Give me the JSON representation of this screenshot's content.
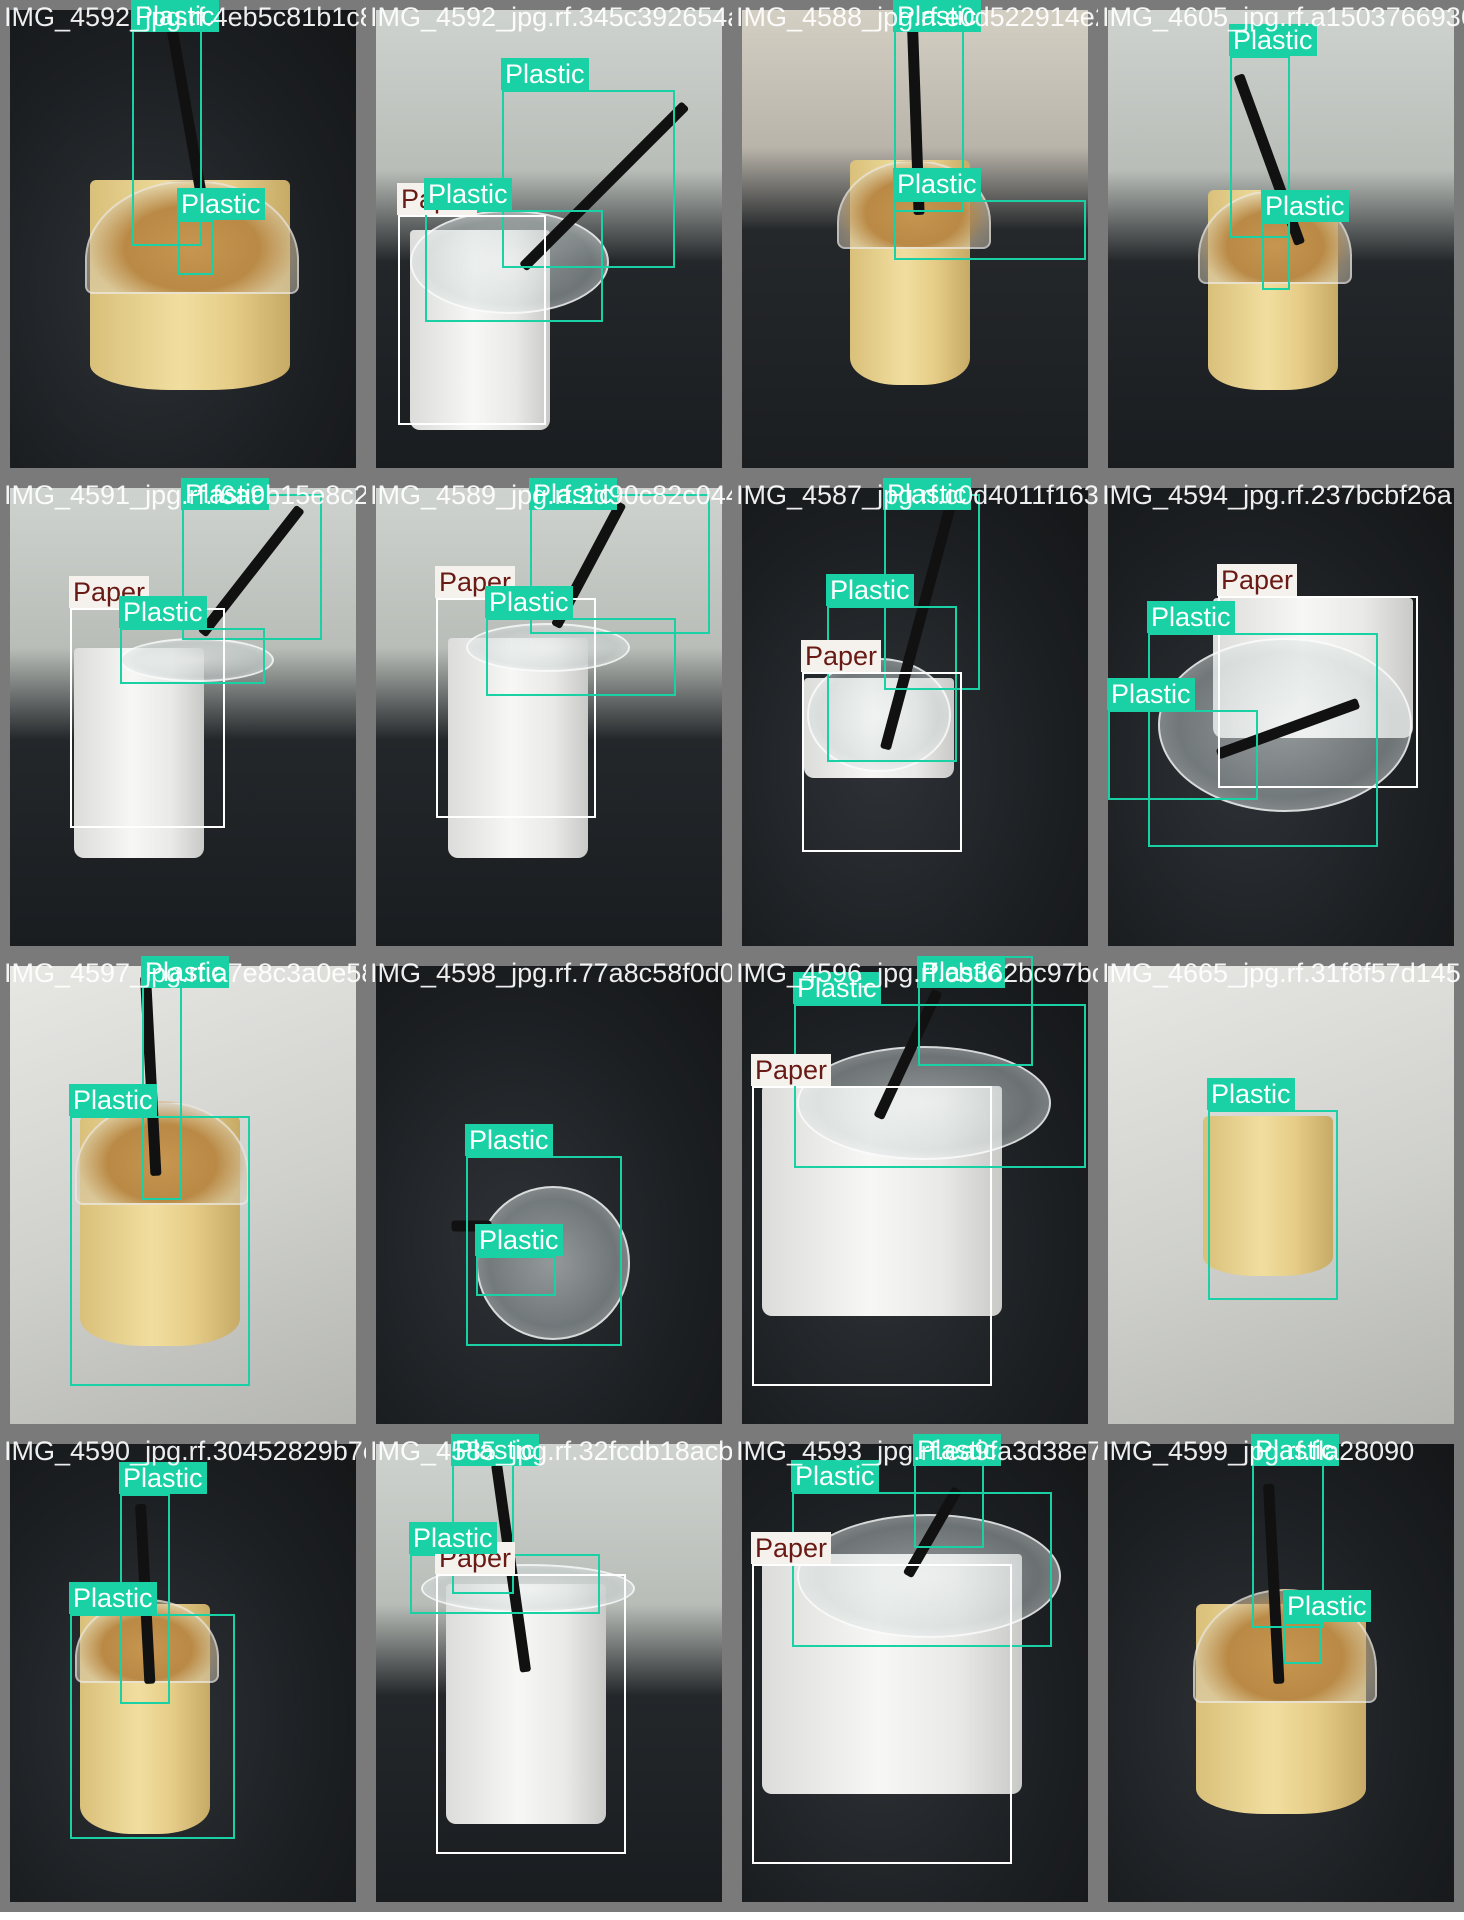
{
  "colors": {
    "plastic": "#1ad1a5",
    "paper": "#ffffff",
    "paper_text": "#6a1a14"
  },
  "tiles": [
    {
      "filename": "IMG_4592_jpg.rf.4eb5c81b1c89590d4fb245c36253416e",
      "labels": [
        "Plastic",
        "Plastic"
      ]
    },
    {
      "filename": "IMG_4592_jpg.rf.345c392654ade4538c2d84ad5229f3ed",
      "labels": [
        "Plastic",
        "Paper",
        "Plastic"
      ]
    },
    {
      "filename": "IMG_4588_jpg.rf.e0d522914e2a05a1503f0693ec",
      "labels": [
        "Plastic",
        "Plastic"
      ]
    },
    {
      "filename": "IMG_4605_jpg.rf.a150376693658",
      "labels": [
        "Plastic",
        "Plastic"
      ]
    },
    {
      "filename": "IMG_4591_jpg.rf.f6a9b15e8c214589fd721d90c82c",
      "labels": [
        "Plastic",
        "Paper",
        "Plastic"
      ]
    },
    {
      "filename": "IMG_4589_jpg.rf.2d90c82c0447456b2a84011f",
      "labels": [
        "Plastic",
        "Paper",
        "Plastic"
      ]
    },
    {
      "filename": "IMG_4587_jpg.rf.c0d4011f163",
      "labels": [
        "Plastic",
        "Plastic",
        "Paper"
      ]
    },
    {
      "filename": "IMG_4594_jpg.rf.237bcbf26a",
      "labels": [
        "Paper",
        "Plastic",
        "Plastic"
      ]
    },
    {
      "filename": "IMG_4597_jpg.rf.a7e8c3a0e58f0e9774ab",
      "labels": [
        "Plastic",
        "Plastic"
      ]
    },
    {
      "filename": "IMG_4598_jpg.rf.77a8c58f0d0c3cd2cb362",
      "labels": [
        "Plastic",
        "Plastic"
      ]
    },
    {
      "filename": "IMG_4596_jpg.rf.cb362bc97bcd94665",
      "labels": [
        "Plastic",
        "Paper",
        "Plastic"
      ]
    },
    {
      "filename": "IMG_4665_jpg.rf.31f8f57d145",
      "labels": [
        "Plastic"
      ]
    },
    {
      "filename": "IMG_4590_jpg.rf.30452829b7e9",
      "labels": [
        "Plastic",
        "Plastic"
      ]
    },
    {
      "filename": "IMG_4585_jpg.rf.32fcdb18acb7b0",
      "labels": [
        "Plastic",
        "Paper",
        "Plastic"
      ]
    },
    {
      "filename": "IMG_4593_jpg.rf.ea9fa3d38e7d",
      "labels": [
        "Plastic",
        "Plastic",
        "Paper"
      ]
    },
    {
      "filename": "IMG_4599_jpg.rf.fla28090",
      "labels": [
        "Plastic",
        "Plastic"
      ]
    }
  ]
}
